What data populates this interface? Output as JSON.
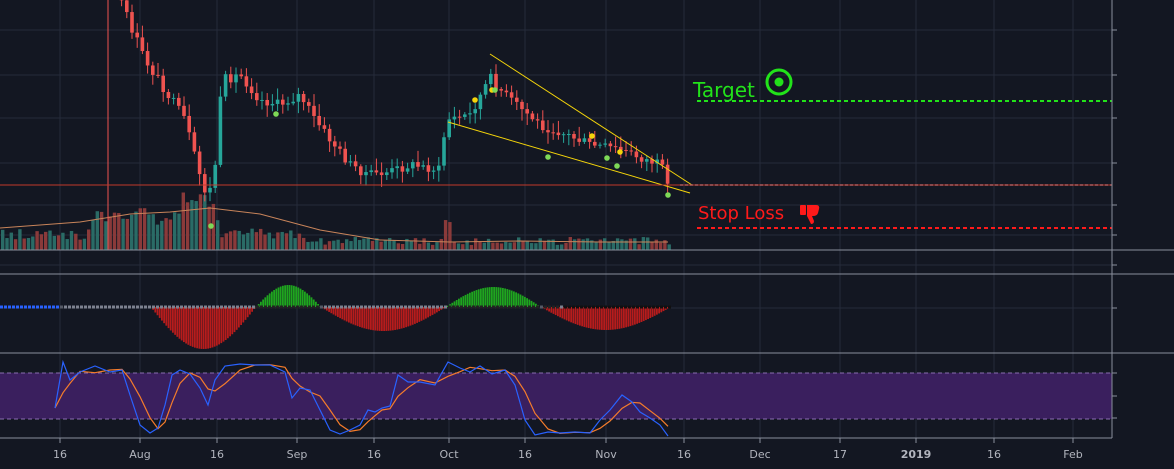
{
  "theme": {
    "background": "#131722",
    "grid": "#262b3a",
    "divider": "#8a8f9c",
    "axis_text": "#b2b5be",
    "candle_up": "#26a69a",
    "candle_down": "#ef5350",
    "volume_up": "#2a6b66",
    "volume_down": "#8a3a3a",
    "volume_ma": "#c8845a",
    "wedge": "#e6c229",
    "price_line": "#c0392b",
    "target_color": "#22e31a",
    "stoploss_color": "#ff1a1a",
    "squeeze_pos": "#1fa51f",
    "squeeze_neg": "#b71c1c",
    "stoch_band": "#3a1f5e",
    "stoch_k": "#2962ff",
    "stoch_d": "#f57c2b",
    "signal_yellow": "#f5d50a",
    "signal_green": "#7ed957"
  },
  "annotations": {
    "target_label": "Target",
    "target_icon": "bullseye-icon",
    "stoploss_label": "Stop Loss",
    "stoploss_icon": "thumbs-down-icon"
  },
  "chart_data": [
    {
      "type": "candlestick",
      "panel": "price",
      "pattern": "falling wedge",
      "x_tick_labels": [
        "16",
        "Aug",
        "16",
        "Sep",
        "16",
        "Oct",
        "16",
        "Nov",
        "16",
        "Dec",
        "17",
        "2019",
        "16",
        "Feb"
      ],
      "y_tick_labels": [],
      "grid": true,
      "levels": [
        "Target",
        "Stop Loss"
      ]
    },
    {
      "type": "bar",
      "panel": "volume",
      "overlay": "volume moving average",
      "grid": true
    },
    {
      "type": "bar",
      "panel": "squeeze momentum histogram",
      "grid": true
    },
    {
      "type": "line",
      "panel": "stochastic oscillator",
      "series": [
        {
          "color": "blue"
        },
        {
          "color": "orange"
        }
      ],
      "grid": true
    }
  ]
}
